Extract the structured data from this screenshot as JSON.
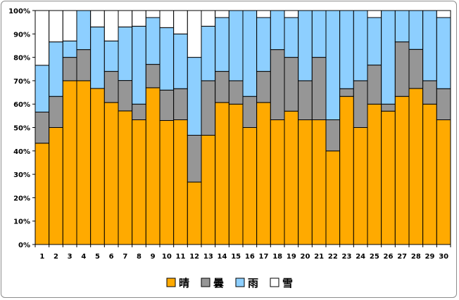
{
  "chart_data": {
    "type": "bar",
    "stacked": true,
    "percent": true,
    "categories": [
      "1",
      "2",
      "3",
      "4",
      "5",
      "6",
      "7",
      "8",
      "9",
      "10",
      "11",
      "12",
      "13",
      "14",
      "15",
      "16",
      "17",
      "18",
      "19",
      "20",
      "21",
      "22",
      "23",
      "24",
      "25",
      "26",
      "27",
      "28",
      "29",
      "30"
    ],
    "series": [
      {
        "name": "晴",
        "color": "#ffaa00",
        "values": [
          43.3,
          50,
          70,
          70,
          66.7,
          60.7,
          57.1,
          53.3,
          67,
          53,
          53.3,
          26.7,
          46.7,
          60.7,
          60,
          50,
          60.7,
          53.3,
          57,
          53.3,
          53.3,
          40,
          63.3,
          50,
          60,
          57,
          63.3,
          66.7,
          60,
          53.3
        ]
      },
      {
        "name": "曇",
        "color": "#969696",
        "values": [
          13.3,
          13.3,
          10,
          13.3,
          0,
          13.3,
          13,
          6.7,
          10,
          13,
          13.3,
          20,
          23.3,
          13.3,
          10,
          13.3,
          13.3,
          30,
          23,
          16.7,
          26.7,
          13.3,
          3.3,
          20,
          16.7,
          3,
          23.3,
          16.7,
          10,
          13.3
        ]
      },
      {
        "name": "雨",
        "color": "#8dcfff",
        "values": [
          20,
          23.3,
          7,
          16.7,
          26.3,
          13,
          22.9,
          33.3,
          20,
          26.7,
          23.4,
          33.3,
          23.3,
          23,
          30,
          36.7,
          23,
          16.7,
          17,
          30,
          20,
          46.7,
          33.4,
          30,
          20.3,
          40,
          13.4,
          16.6,
          30,
          30.4
        ]
      },
      {
        "name": "雪",
        "color": "#ffffff",
        "values": [
          23.4,
          13.4,
          13,
          0,
          7,
          13,
          7,
          6.7,
          3,
          7.3,
          10,
          20,
          6.7,
          3,
          0,
          0,
          3,
          0,
          3,
          0,
          0,
          0,
          0,
          0,
          3,
          0,
          0,
          0,
          0,
          3
        ]
      }
    ],
    "ylim": [
      0,
      100
    ],
    "yticks": [
      "0%",
      "10%",
      "20%",
      "30%",
      "40%",
      "50%",
      "60%",
      "70%",
      "80%",
      "90%",
      "100%"
    ],
    "legend": "bottom",
    "grid": false
  }
}
